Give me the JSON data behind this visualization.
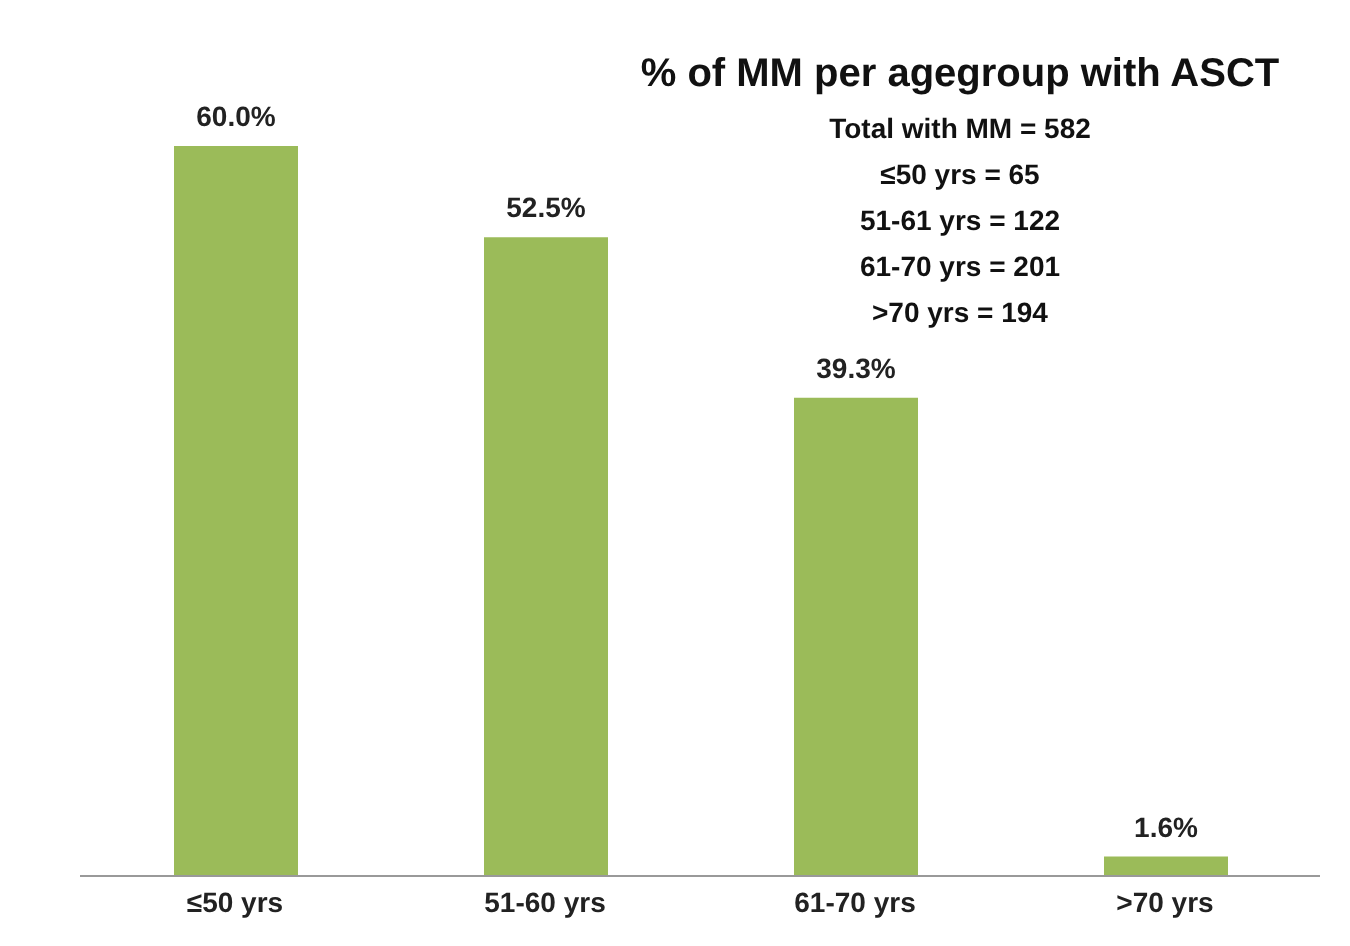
{
  "chart_data": {
    "type": "bar",
    "title": "% of MM per agegroup with ASCT",
    "annotations": [
      "Total with MM = 582",
      "≤50 yrs = 65",
      "51-61 yrs = 122",
      "61-70 yrs = 201",
      ">70 yrs = 194"
    ],
    "categories": [
      "≤50 yrs",
      "51-60 yrs",
      "61-70 yrs",
      ">70 yrs"
    ],
    "values": [
      60.0,
      52.5,
      39.3,
      1.6
    ],
    "value_labels": [
      "60.0%",
      "52.5%",
      "39.3%",
      "1.6%"
    ],
    "color": "#9bbb59",
    "tick_labels": "x",
    "grid": false,
    "legend": false
  }
}
